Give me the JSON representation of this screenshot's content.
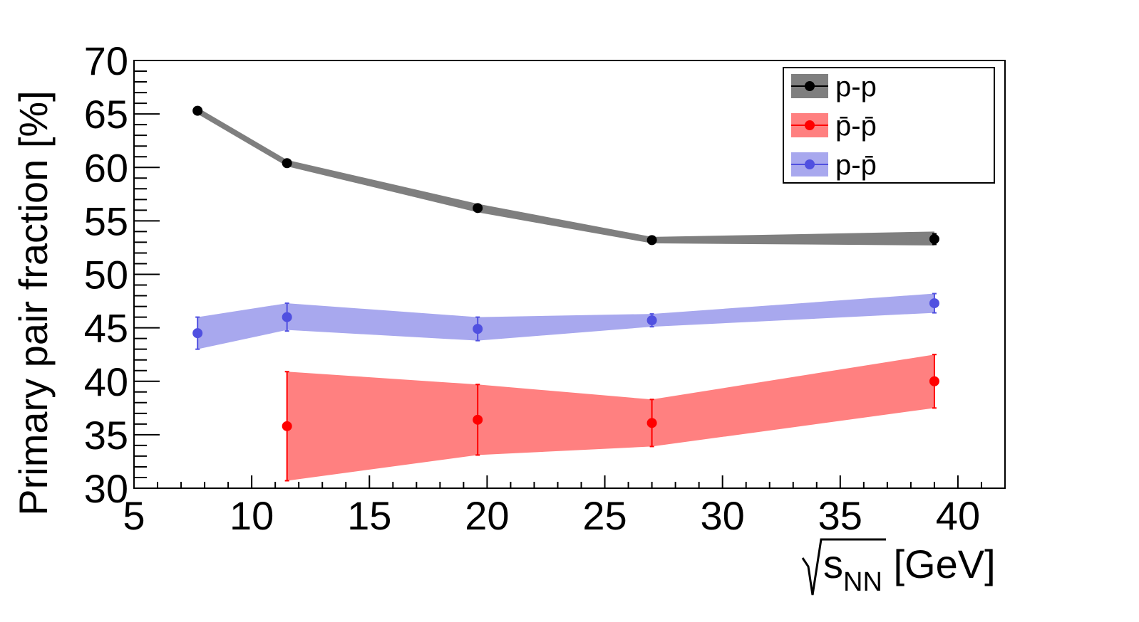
{
  "chart_data": {
    "type": "line",
    "ylabel": "Primary pair fraction [%]",
    "xlabel_parts": {
      "root": "s",
      "subscript": "NN",
      "unit": " [GeV]"
    },
    "xlim": [
      5,
      42
    ],
    "ylim": [
      30,
      70
    ],
    "x_major_ticks": [
      5,
      10,
      15,
      20,
      25,
      30,
      35,
      40
    ],
    "x_tick_labels": [
      "5",
      "10",
      "15",
      "20",
      "25",
      "30",
      "35",
      "40"
    ],
    "y_major_ticks": [
      30,
      35,
      40,
      45,
      50,
      55,
      60,
      65,
      70
    ],
    "y_tick_labels": [
      "30",
      "35",
      "40",
      "45",
      "50",
      "55",
      "60",
      "65",
      "70"
    ],
    "legend_position": "top-right",
    "grid": false,
    "series": [
      {
        "key": "pp",
        "name": "p-p",
        "color": "#000000",
        "band_color": "#7f7f7f",
        "x": [
          7.7,
          11.5,
          19.6,
          27,
          39
        ],
        "y": [
          65.3,
          60.4,
          56.2,
          53.2,
          53.3
        ],
        "band_lo": [
          65.0,
          60.1,
          55.8,
          52.9,
          52.7
        ],
        "band_hi": [
          65.6,
          60.7,
          56.6,
          53.5,
          54.0
        ],
        "err": [
          0.3,
          0.3,
          0.3,
          0.3,
          0.5
        ]
      },
      {
        "key": "pbarpbar",
        "name": "p̄-p̄",
        "name_overline": true,
        "color": "#ff0000",
        "band_color": "#ff8080",
        "x": [
          11.5,
          19.6,
          27,
          39
        ],
        "y": [
          35.8,
          36.4,
          36.1,
          40.0
        ],
        "band_lo": [
          30.7,
          33.1,
          33.9,
          37.5
        ],
        "band_hi": [
          40.9,
          39.7,
          38.3,
          42.5
        ],
        "err": [
          5.1,
          3.3,
          2.2,
          2.5
        ]
      },
      {
        "key": "ppbar",
        "name": "p-p̄",
        "name_overline": true,
        "color": "#5050e0",
        "band_color": "#a8a8ee",
        "x": [
          7.7,
          11.5,
          19.6,
          27,
          39
        ],
        "y": [
          44.5,
          46.0,
          44.9,
          45.7,
          47.3
        ],
        "band_lo": [
          43.0,
          44.8,
          43.8,
          45.1,
          46.4
        ],
        "band_hi": [
          46.0,
          47.3,
          46.0,
          46.3,
          48.2
        ],
        "err": [
          1.5,
          1.3,
          1.1,
          0.6,
          0.9
        ]
      }
    ]
  }
}
